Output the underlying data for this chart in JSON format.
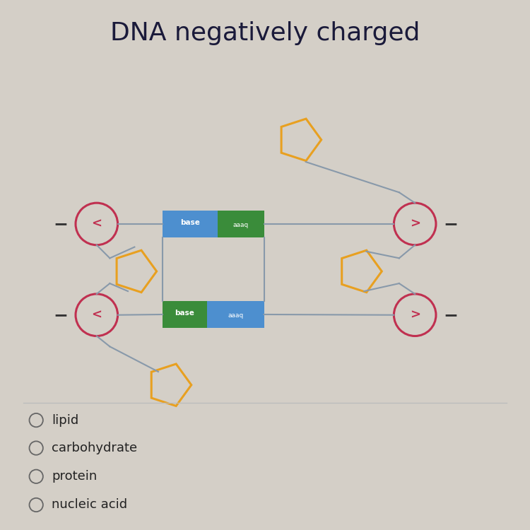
{
  "title": "DNA negatively charged",
  "title_fontsize": 26,
  "background_color": "#d4cfc7",
  "options": [
    "lipid",
    "carbohydrate",
    "protein",
    "nucleic acid"
  ],
  "orange_color": "#e8a020",
  "red_circle_color": "#c03050",
  "blue_box_color": "#4d8fcf",
  "green_box_color": "#3a8c3a",
  "line_color": "#8899aa"
}
